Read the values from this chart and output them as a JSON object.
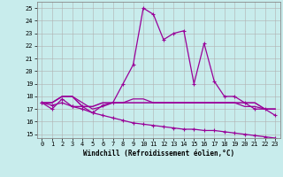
{
  "xlabel": "Windchill (Refroidissement éolien,°C)",
  "background_color": "#c8ecec",
  "grid_color": "#b0b0b0",
  "line_color": "#990099",
  "x_ticks": [
    0,
    1,
    2,
    3,
    4,
    5,
    6,
    7,
    8,
    9,
    10,
    11,
    12,
    13,
    14,
    15,
    16,
    17,
    18,
    19,
    20,
    21,
    22,
    23
  ],
  "y_ticks": [
    15,
    16,
    17,
    18,
    19,
    20,
    21,
    22,
    23,
    24,
    25
  ],
  "xlim": [
    -0.5,
    23.5
  ],
  "ylim": [
    14.7,
    25.5
  ],
  "line1_x": [
    0,
    1,
    2,
    3,
    4,
    5,
    6,
    7,
    8,
    9,
    10,
    11,
    12,
    13,
    14,
    15,
    16,
    17,
    18,
    19,
    20,
    21,
    22,
    23
  ],
  "line1_y": [
    17.5,
    17.0,
    17.8,
    17.2,
    17.2,
    16.7,
    17.3,
    17.5,
    19.0,
    20.5,
    25.0,
    24.5,
    22.5,
    23.0,
    23.2,
    19.0,
    22.2,
    19.2,
    18.0,
    18.0,
    17.5,
    17.0,
    17.0,
    16.5
  ],
  "line2_x": [
    0,
    1,
    2,
    3,
    4,
    5,
    6,
    7,
    8,
    9,
    10,
    11,
    12,
    13,
    14,
    15,
    16,
    17,
    18,
    19,
    20,
    21,
    22,
    23
  ],
  "line2_y": [
    17.5,
    17.5,
    18.0,
    18.0,
    17.2,
    17.2,
    17.5,
    17.5,
    17.5,
    17.5,
    17.5,
    17.5,
    17.5,
    17.5,
    17.5,
    17.5,
    17.5,
    17.5,
    17.5,
    17.5,
    17.5,
    17.5,
    17.0,
    17.0
  ],
  "line3_x": [
    0,
    1,
    2,
    3,
    4,
    5,
    6,
    7,
    8,
    9,
    10,
    11,
    12,
    13,
    14,
    15,
    16,
    17,
    18,
    19,
    20,
    21,
    22,
    23
  ],
  "line3_y": [
    17.5,
    17.5,
    18.0,
    18.0,
    17.5,
    17.0,
    17.2,
    17.5,
    17.5,
    17.8,
    17.8,
    17.5,
    17.5,
    17.5,
    17.5,
    17.5,
    17.5,
    17.5,
    17.5,
    17.5,
    17.2,
    17.2,
    17.0,
    17.0
  ],
  "line4_x": [
    0,
    1,
    2,
    3,
    4,
    5,
    6,
    7,
    8,
    9,
    10,
    11,
    12,
    13,
    14,
    15,
    16,
    17,
    18,
    19,
    20,
    21,
    22,
    23
  ],
  "line4_y": [
    17.5,
    17.3,
    17.5,
    17.2,
    17.0,
    16.7,
    16.5,
    16.3,
    16.1,
    15.9,
    15.8,
    15.7,
    15.6,
    15.5,
    15.4,
    15.4,
    15.3,
    15.3,
    15.2,
    15.1,
    15.0,
    14.9,
    14.8,
    14.7
  ],
  "xlabel_fontsize": 5.5,
  "tick_fontsize": 5.0,
  "linewidth_main": 0.9,
  "linewidth_flat": 1.1,
  "marker_size": 2.5
}
